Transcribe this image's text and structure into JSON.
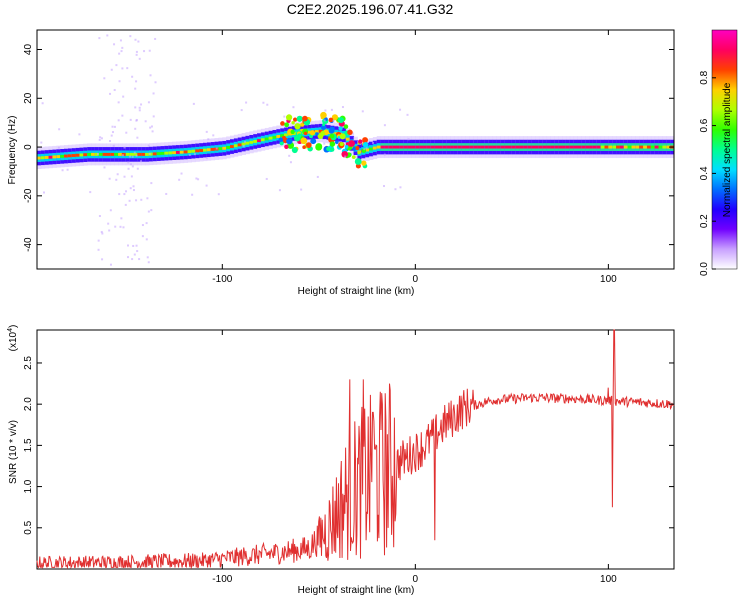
{
  "title": "C2E2.2025.196.07.41.G32",
  "chart_data": [
    {
      "type": "heatmap",
      "xlabel": "Height of straight line (km)",
      "ylabel": "Frequency (Hz)",
      "xlim": [
        -196,
        134
      ],
      "ylim": [
        -50,
        48
      ],
      "xticks": [
        -100,
        0,
        100
      ],
      "yticks": [
        -40,
        -20,
        0,
        20,
        40
      ],
      "colorbar": {
        "label": "Normalized spectral amplitude",
        "range": [
          0,
          1
        ],
        "ticks": [
          "0.0",
          "0.2",
          "0.4",
          "0.6",
          "0.8"
        ],
        "colors": [
          "#ffffff",
          "#c8a0ff",
          "#7000ff",
          "#2000ff",
          "#0070ff",
          "#00e0ff",
          "#00ff90",
          "#30ff00",
          "#b0ff00",
          "#ffd000",
          "#ff4000",
          "#ff0060",
          "#ff00c0"
        ]
      },
      "ridge": [
        {
          "x": -196,
          "f": -4.5
        },
        {
          "x": -170,
          "f": -3
        },
        {
          "x": -140,
          "f": -3
        },
        {
          "x": -120,
          "f": -2
        },
        {
          "x": -100,
          "f": -0.5
        },
        {
          "x": -80,
          "f": 3
        },
        {
          "x": -65,
          "f": 5.5
        },
        {
          "x": -50,
          "f": 6.5
        },
        {
          "x": -38,
          "f": 5
        },
        {
          "x": -30,
          "f": -2
        },
        {
          "x": -20,
          "f": 0
        },
        {
          "x": 0,
          "f": 0
        },
        {
          "x": 50,
          "f": 0
        },
        {
          "x": 100,
          "f": 0
        },
        {
          "x": 134,
          "f": 0
        }
      ]
    },
    {
      "type": "line",
      "xlabel": "Height of straight line (km)",
      "ylabel": "SNR (10 * v/v)",
      "yscale_label_prefix": "(x10",
      "yscale_label_exp": "4",
      "yscale_label_suffix": ")",
      "xlim": [
        -196,
        134
      ],
      "ylim": [
        0,
        29000
      ],
      "xticks": [
        -100,
        0,
        100
      ],
      "yticks": [
        5000,
        10000,
        15000,
        20000,
        25000
      ],
      "ytick_labels": [
        "0.5",
        "1.0",
        "1.5",
        "2.0",
        "2.5"
      ],
      "color": "#e03030",
      "envelope": [
        {
          "x": -196,
          "y": 700
        },
        {
          "x": -150,
          "y": 800
        },
        {
          "x": -110,
          "y": 1000
        },
        {
          "x": -90,
          "y": 1500
        },
        {
          "x": -70,
          "y": 2000
        },
        {
          "x": -55,
          "y": 2500
        },
        {
          "x": -45,
          "y": 5000
        },
        {
          "x": -35,
          "y": 9000
        },
        {
          "x": -25,
          "y": 11000
        },
        {
          "x": -15,
          "y": 12000
        },
        {
          "x": -5,
          "y": 13500
        },
        {
          "x": 5,
          "y": 15000
        },
        {
          "x": 15,
          "y": 17500
        },
        {
          "x": 25,
          "y": 19500
        },
        {
          "x": 40,
          "y": 20500
        },
        {
          "x": 60,
          "y": 20800
        },
        {
          "x": 80,
          "y": 20700
        },
        {
          "x": 95,
          "y": 20500
        },
        {
          "x": 110,
          "y": 20300
        },
        {
          "x": 134,
          "y": 20000
        }
      ],
      "spikes": [
        {
          "x": -34,
          "y": 23000
        },
        {
          "x": -27,
          "y": 23000
        },
        {
          "x": -22,
          "y": 19000
        },
        {
          "x": -17,
          "y": 20000
        },
        {
          "x": 10,
          "y": 3500
        },
        {
          "x": 100,
          "y": 22000
        },
        {
          "x": 102,
          "y": 7500
        },
        {
          "x": 103,
          "y": 29000
        }
      ]
    }
  ]
}
